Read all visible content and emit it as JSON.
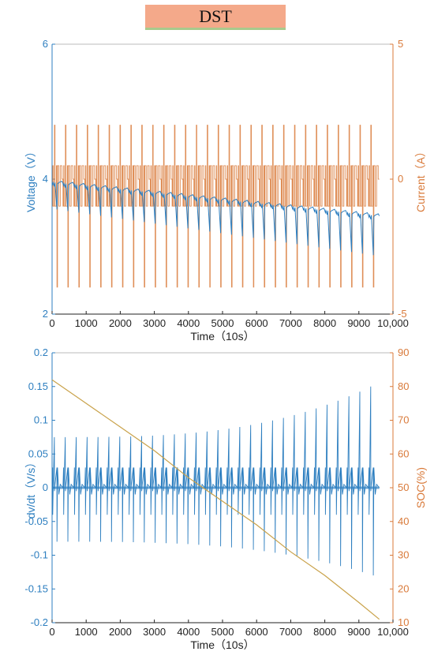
{
  "title": "DST",
  "colors": {
    "left_axis": "#2e7fc0",
    "right_axis": "#d97a3a",
    "ink": "#222222",
    "title_bg": "#f4a98a",
    "title_line": "#a9c98c"
  },
  "chart_data": [
    {
      "type": "line",
      "xlabel": "Time（10s）",
      "ylabel_left": "Voltage（V）",
      "ylabel_right": "Current（A）",
      "xlim": [
        0,
        10000
      ],
      "ylim_left": [
        2,
        6
      ],
      "ylim_right": [
        -5,
        5
      ],
      "x_ticks": [
        "0",
        "1000",
        "2000",
        "3000",
        "4000",
        "5000",
        "6000",
        "7000",
        "8000",
        "9000",
        "10,000"
      ],
      "y_left_ticks": [
        "2",
        "4",
        "6"
      ],
      "y_right_ticks": [
        "-5",
        "0",
        "5"
      ],
      "grid": false,
      "series": [
        {
          "axis": "left",
          "color": "#2e7fc0",
          "pattern": "DST voltage response",
          "x_range": [
            0,
            9600
          ],
          "baseline_start": 3.95,
          "baseline_end": 3.45,
          "min_start": 3.55,
          "min_end": 2.85
        },
        {
          "axis": "right",
          "color": "#d97a3a",
          "pattern": "DST current profile",
          "x_range": [
            0,
            9600
          ],
          "cycles": 30,
          "values_seen": [
            -4,
            -1,
            0.5,
            2
          ]
        }
      ]
    },
    {
      "type": "line",
      "xlabel": "Time（10s）",
      "ylabel_left": "dv/dt（V/s）",
      "ylabel_right": "SOC(%)",
      "xlim": [
        0,
        10000
      ],
      "ylim_left": [
        -0.2,
        0.2
      ],
      "ylim_right": [
        10,
        90
      ],
      "x_ticks": [
        "0",
        "1000",
        "2000",
        "3000",
        "4000",
        "5000",
        "6000",
        "7000",
        "8000",
        "9000",
        "10,000"
      ],
      "y_left_ticks": [
        "-0.2",
        "-0.15",
        "-0.1",
        "-0.05",
        "0",
        "0.05",
        "0.1",
        "0.15",
        "0.2"
      ],
      "y_right_ticks": [
        "10",
        "20",
        "30",
        "40",
        "50",
        "60",
        "70",
        "80",
        "90"
      ],
      "grid": false,
      "series": [
        {
          "axis": "left",
          "color": "#2e7fc0",
          "pattern": "dv/dt spikes",
          "x_range": [
            0,
            9600
          ],
          "spike_start": 0.075,
          "spike_end": 0.15,
          "neg_start": -0.08,
          "neg_end": -0.13
        },
        {
          "axis": "right",
          "color": "#c9a24a",
          "name_hint": "SOC",
          "x": [
            0,
            1000,
            2000,
            3000,
            4000,
            5000,
            6000,
            7000,
            8000,
            9000,
            9600
          ],
          "y": [
            82,
            75,
            68,
            61,
            53,
            46,
            39,
            31,
            24,
            16,
            11
          ]
        }
      ]
    }
  ]
}
